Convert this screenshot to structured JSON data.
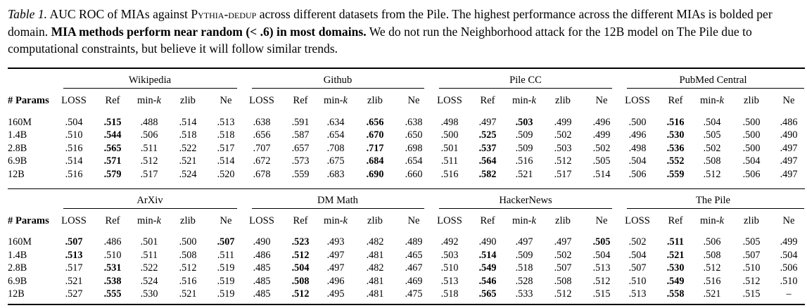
{
  "caption": {
    "label": "Table 1.",
    "text1": " AUC ROC of MIAs against ",
    "model": "Pythia-dedup",
    "text2": " across different datasets from the Pile. The highest performance across the different MIAs is bolded per domain. ",
    "bold": "MIA methods perform near random (< .6) in most domains.",
    "text3": " We do not run the Neighborhood attack for the 12B model on The Pile due to computational constraints, but believe it will follow similar trends."
  },
  "param_header": "# Params",
  "methods": [
    "LOSS",
    "Ref",
    "min-k",
    "zlib",
    "Ne"
  ],
  "blocks": [
    {
      "domains": [
        "Wikipedia",
        "Github",
        "Pile CC",
        "PubMed Central"
      ],
      "rows": [
        {
          "param": "160M",
          "values": [
            [
              ".504",
              ".515",
              ".488",
              ".514",
              ".513"
            ],
            [
              ".638",
              ".591",
              ".634",
              ".656",
              ".638"
            ],
            [
              ".498",
              ".497",
              ".503",
              ".499",
              ".496"
            ],
            [
              ".500",
              ".516",
              ".504",
              ".500",
              ".486"
            ]
          ],
          "bold": [
            1,
            3,
            2,
            1
          ]
        },
        {
          "param": "1.4B",
          "values": [
            [
              ".510",
              ".544",
              ".506",
              ".518",
              ".518"
            ],
            [
              ".656",
              ".587",
              ".654",
              ".670",
              ".650"
            ],
            [
              ".500",
              ".525",
              ".509",
              ".502",
              ".499"
            ],
            [
              ".496",
              ".530",
              ".505",
              ".500",
              ".490"
            ]
          ],
          "bold": [
            1,
            3,
            1,
            1
          ]
        },
        {
          "param": "2.8B",
          "values": [
            [
              ".516",
              ".565",
              ".511",
              ".522",
              ".517"
            ],
            [
              ".707",
              ".657",
              ".708",
              ".717",
              ".698"
            ],
            [
              ".501",
              ".537",
              ".509",
              ".503",
              ".502"
            ],
            [
              ".498",
              ".536",
              ".502",
              ".500",
              ".497"
            ]
          ],
          "bold": [
            1,
            3,
            1,
            1
          ]
        },
        {
          "param": "6.9B",
          "values": [
            [
              ".514",
              ".571",
              ".512",
              ".521",
              ".514"
            ],
            [
              ".672",
              ".573",
              ".675",
              ".684",
              ".654"
            ],
            [
              ".511",
              ".564",
              ".516",
              ".512",
              ".505"
            ],
            [
              ".504",
              ".552",
              ".508",
              ".504",
              ".497"
            ]
          ],
          "bold": [
            1,
            3,
            1,
            1
          ]
        },
        {
          "param": "12B",
          "values": [
            [
              ".516",
              ".579",
              ".517",
              ".524",
              ".520"
            ],
            [
              ".678",
              ".559",
              ".683",
              ".690",
              ".660"
            ],
            [
              ".516",
              ".582",
              ".521",
              ".517",
              ".514"
            ],
            [
              ".506",
              ".559",
              ".512",
              ".506",
              ".497"
            ]
          ],
          "bold": [
            1,
            3,
            1,
            1
          ]
        }
      ]
    },
    {
      "domains": [
        "ArXiv",
        "DM Math",
        "HackerNews",
        "The Pile"
      ],
      "rows": [
        {
          "param": "160M",
          "values": [
            [
              ".507",
              ".486",
              ".501",
              ".500",
              ".507"
            ],
            [
              ".490",
              ".523",
              ".493",
              ".482",
              ".489"
            ],
            [
              ".492",
              ".490",
              ".497",
              ".497",
              ".505"
            ],
            [
              ".502",
              ".511",
              ".506",
              ".505",
              ".499"
            ]
          ],
          "bold": [
            [
              0,
              4
            ],
            1,
            4,
            1
          ]
        },
        {
          "param": "1.4B",
          "values": [
            [
              ".513",
              ".510",
              ".511",
              ".508",
              ".511"
            ],
            [
              ".486",
              ".512",
              ".497",
              ".481",
              ".465"
            ],
            [
              ".503",
              ".514",
              ".509",
              ".502",
              ".504"
            ],
            [
              ".504",
              ".521",
              ".508",
              ".507",
              ".504"
            ]
          ],
          "bold": [
            0,
            1,
            1,
            1
          ]
        },
        {
          "param": "2.8B",
          "values": [
            [
              ".517",
              ".531",
              ".522",
              ".512",
              ".519"
            ],
            [
              ".485",
              ".504",
              ".497",
              ".482",
              ".467"
            ],
            [
              ".510",
              ".549",
              ".518",
              ".507",
              ".513"
            ],
            [
              ".507",
              ".530",
              ".512",
              ".510",
              ".506"
            ]
          ],
          "bold": [
            1,
            1,
            1,
            1
          ]
        },
        {
          "param": "6.9B",
          "values": [
            [
              ".521",
              ".538",
              ".524",
              ".516",
              ".519"
            ],
            [
              ".485",
              ".508",
              ".496",
              ".481",
              ".469"
            ],
            [
              ".513",
              ".546",
              ".528",
              ".508",
              ".512"
            ],
            [
              ".510",
              ".549",
              ".516",
              ".512",
              ".510"
            ]
          ],
          "bold": [
            1,
            1,
            1,
            1
          ]
        },
        {
          "param": "12B",
          "values": [
            [
              ".527",
              ".555",
              ".530",
              ".521",
              ".519"
            ],
            [
              ".485",
              ".512",
              ".495",
              ".481",
              ".475"
            ],
            [
              ".518",
              ".565",
              ".533",
              ".512",
              ".515"
            ],
            [
              ".513",
              ".558",
              ".521",
              ".515",
              "–"
            ]
          ],
          "bold": [
            1,
            1,
            1,
            1
          ]
        }
      ]
    }
  ]
}
